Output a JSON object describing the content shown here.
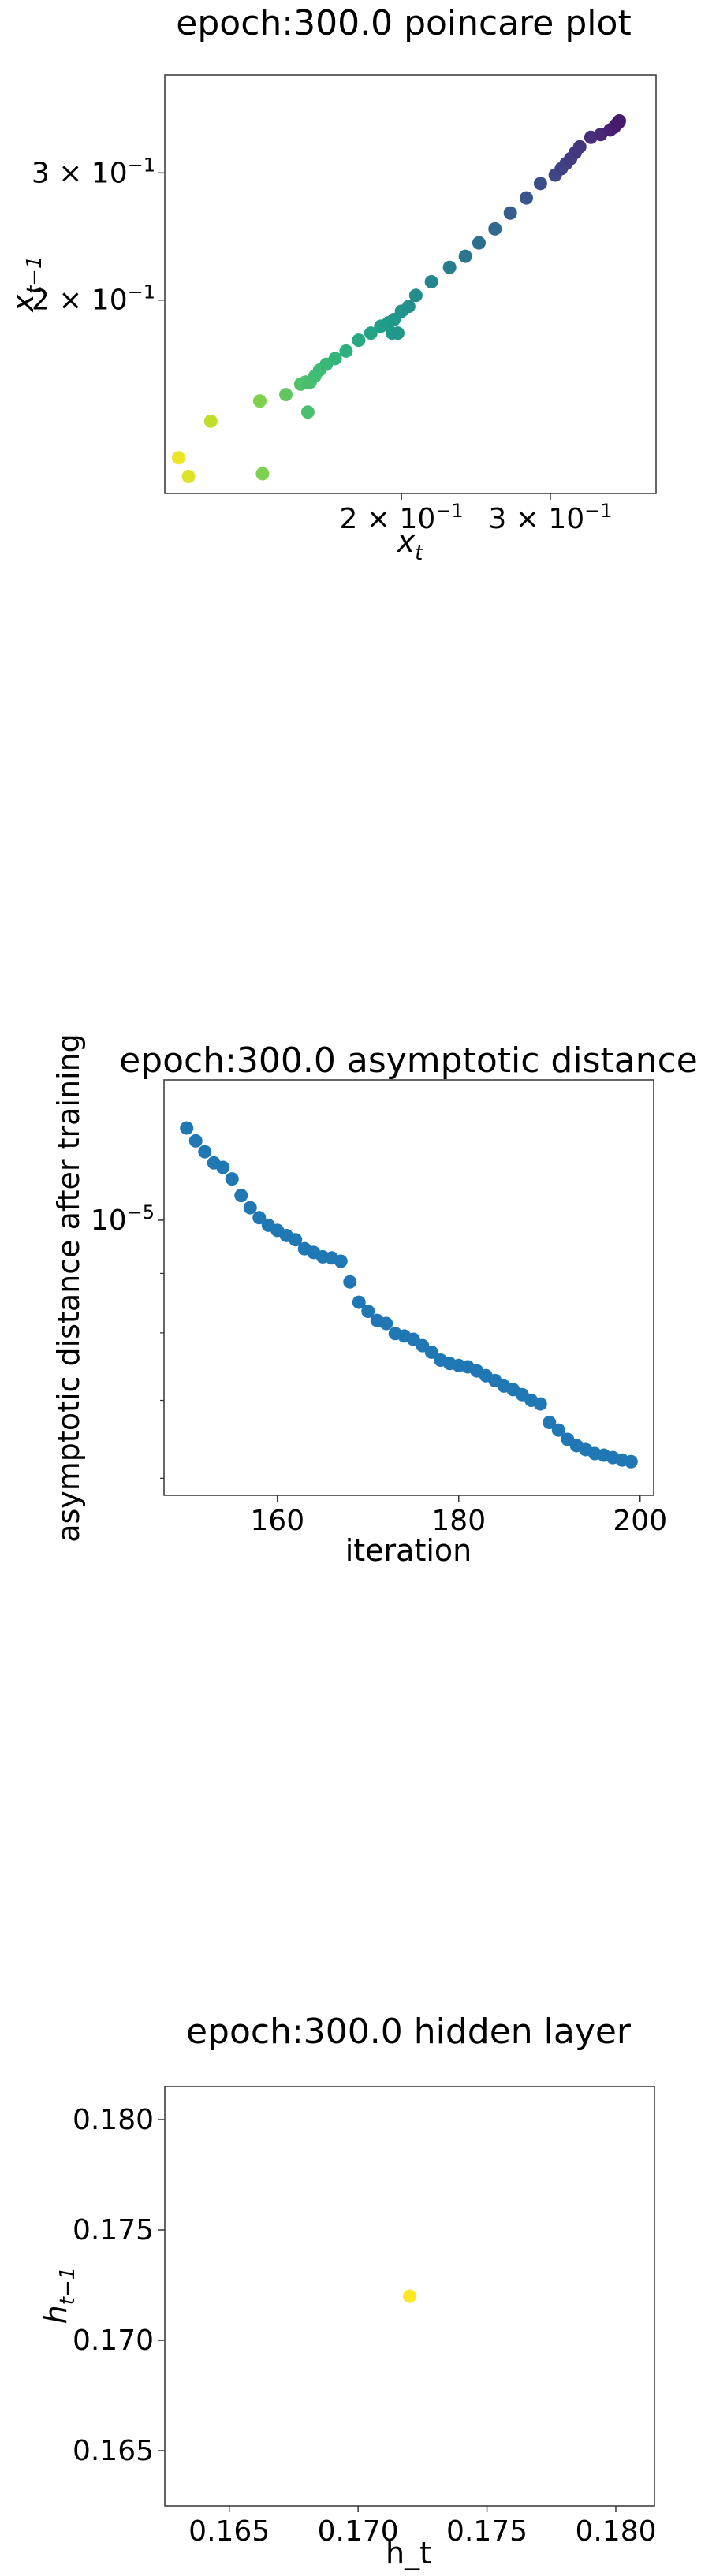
{
  "chart_data": [
    {
      "type": "scatter",
      "title": "epoch:300.0 poincare plot",
      "xlabel_main": "x",
      "xlabel_sub": "t",
      "ylabel_main": "x",
      "ylabel_sub": "t−1",
      "xscale": "log",
      "yscale": "log",
      "xlim": [
        0.105,
        0.4
      ],
      "ylim": [
        0.108,
        0.41
      ],
      "xticks": [
        {
          "value": 0.2,
          "mant": "2",
          "exp": "−1"
        },
        {
          "value": 0.3,
          "mant": "3",
          "exp": "−1"
        }
      ],
      "yticks": [
        {
          "value": 0.2,
          "mant": "2",
          "exp": "−1"
        },
        {
          "value": 0.3,
          "mant": "3",
          "exp": "−1"
        }
      ],
      "colormap": "viridis (colour follows x_t, low = yellow, high = purple)",
      "points": [
        [
          0.109,
          0.121
        ],
        [
          0.112,
          0.114
        ],
        [
          0.137,
          0.115
        ],
        [
          0.155,
          0.14
        ],
        [
          0.119,
          0.136
        ],
        [
          0.136,
          0.145
        ],
        [
          0.146,
          0.148
        ],
        [
          0.152,
          0.153
        ],
        [
          0.154,
          0.154
        ],
        [
          0.156,
          0.154
        ],
        [
          0.158,
          0.157
        ],
        [
          0.16,
          0.16
        ],
        [
          0.163,
          0.163
        ],
        [
          0.167,
          0.166
        ],
        [
          0.172,
          0.17
        ],
        [
          0.178,
          0.176
        ],
        [
          0.184,
          0.18
        ],
        [
          0.189,
          0.184
        ],
        [
          0.193,
          0.186
        ],
        [
          0.195,
          0.18
        ],
        [
          0.198,
          0.18
        ],
        [
          0.196,
          0.188
        ],
        [
          0.2,
          0.193
        ],
        [
          0.204,
          0.196
        ],
        [
          0.208,
          0.203
        ],
        [
          0.217,
          0.212
        ],
        [
          0.228,
          0.222
        ],
        [
          0.238,
          0.23
        ],
        [
          0.247,
          0.24
        ],
        [
          0.258,
          0.251
        ],
        [
          0.269,
          0.264
        ],
        [
          0.281,
          0.277
        ],
        [
          0.292,
          0.29
        ],
        [
          0.304,
          0.298
        ],
        [
          0.309,
          0.304
        ],
        [
          0.313,
          0.309
        ],
        [
          0.317,
          0.314
        ],
        [
          0.321,
          0.32
        ],
        [
          0.325,
          0.326
        ],
        [
          0.335,
          0.336
        ],
        [
          0.344,
          0.339
        ],
        [
          0.353,
          0.344
        ],
        [
          0.357,
          0.347
        ],
        [
          0.359,
          0.35
        ],
        [
          0.361,
          0.352
        ],
        [
          0.362,
          0.354
        ]
      ]
    },
    {
      "type": "scatter",
      "title": "epoch:300.0 asymptotic distance",
      "xlabel": "iteration",
      "ylabel": "asymptotic distance after training",
      "xscale": "linear",
      "yscale": "log",
      "xlim": [
        147.5,
        201.5
      ],
      "ylim": [
        5.8e-06,
        1.32e-05
      ],
      "xticks": [
        160,
        180,
        200
      ],
      "yticks": [
        {
          "value": 1e-05,
          "mant": "10",
          "exp": "−5"
        }
      ],
      "color": "#1f77b4",
      "x": [
        150,
        151,
        152,
        153,
        154,
        155,
        156,
        157,
        158,
        159,
        160,
        161,
        162,
        163,
        164,
        165,
        166,
        167,
        168,
        169,
        170,
        171,
        172,
        173,
        174,
        175,
        176,
        177,
        178,
        179,
        180,
        181,
        182,
        183,
        184,
        185,
        186,
        187,
        188,
        189,
        190,
        191,
        192,
        193,
        194,
        195,
        196,
        197,
        198,
        199
      ],
      "y": [
        1.2e-05,
        1.17e-05,
        1.145e-05,
        1.12e-05,
        1.11e-05,
        1.085e-05,
        1.05e-05,
        1.025e-05,
        1.005e-05,
        9.9e-06,
        9.8e-06,
        9.7e-06,
        9.62e-06,
        9.45e-06,
        9.38e-06,
        9.3e-06,
        9.28e-06,
        9.22e-06,
        8.85e-06,
        8.5e-06,
        8.35e-06,
        8.2e-06,
        8.15e-06,
        7.99e-06,
        7.95e-06,
        7.9e-06,
        7.8e-06,
        7.7e-06,
        7.58e-06,
        7.53e-06,
        7.5e-06,
        7.48e-06,
        7.42e-06,
        7.35e-06,
        7.28e-06,
        7.2e-06,
        7.15e-06,
        7.08e-06,
        7e-06,
        6.95e-06,
        6.7e-06,
        6.6e-06,
        6.48e-06,
        6.4e-06,
        6.35e-06,
        6.3e-06,
        6.28e-06,
        6.25e-06,
        6.22e-06,
        6.2e-06
      ]
    },
    {
      "type": "scatter",
      "title": "epoch:300.0 hidden layer",
      "xlabel": "h_t",
      "ylabel_main": "h",
      "ylabel_sub": "t−1",
      "xscale": "linear",
      "yscale": "linear",
      "xlim": [
        0.1625,
        0.1815
      ],
      "ylim": [
        0.1625,
        0.1815
      ],
      "xticks": [
        "0.165",
        "0.170",
        "0.175",
        "0.180"
      ],
      "yticks": [
        "0.165",
        "0.170",
        "0.175",
        "0.180"
      ],
      "points": [
        [
          0.172,
          0.172
        ]
      ],
      "color": "#fde725"
    }
  ]
}
